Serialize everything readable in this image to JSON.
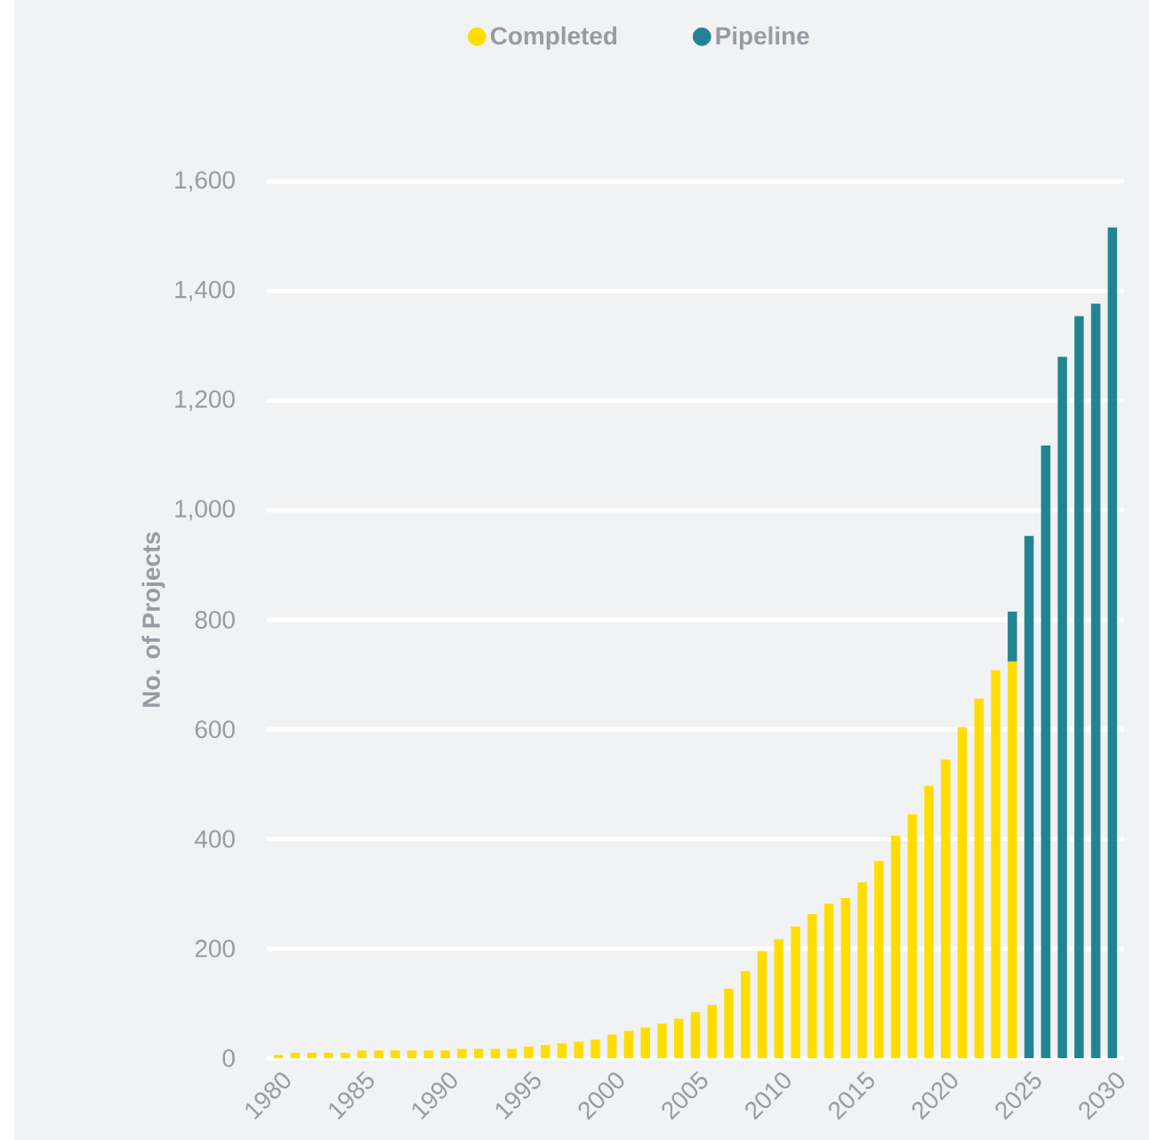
{
  "chart_data": {
    "type": "bar",
    "stacked": true,
    "ylabel": "No. of Projects",
    "categories": [
      "1980",
      null,
      null,
      null,
      null,
      "1985",
      null,
      null,
      null,
      null,
      "1990",
      null,
      null,
      null,
      null,
      "1995",
      null,
      null,
      null,
      null,
      "2000",
      null,
      null,
      null,
      null,
      "2005",
      null,
      null,
      null,
      null,
      "2010",
      null,
      null,
      null,
      null,
      "2015",
      null,
      null,
      null,
      null,
      "2020",
      null,
      null,
      null,
      null,
      "2025",
      null,
      null,
      null,
      null,
      "2030"
    ],
    "series": [
      {
        "name": "Completed",
        "color": "#ffdd00",
        "values": [
          6,
          10,
          10,
          10,
          10,
          14,
          14,
          14,
          14,
          14,
          14,
          17,
          17,
          17,
          17,
          21,
          24,
          27,
          30,
          34,
          43,
          50,
          56,
          63,
          72,
          84,
          97,
          127,
          159,
          195,
          217,
          240,
          263,
          282,
          292,
          321,
          360,
          406,
          445,
          497,
          545,
          604,
          656,
          708,
          724,
          null,
          null,
          null,
          null,
          null,
          null
        ]
      },
      {
        "name": "Pipeline",
        "color": "#238491",
        "values": [
          null,
          null,
          null,
          null,
          null,
          null,
          null,
          null,
          null,
          null,
          null,
          null,
          null,
          null,
          null,
          null,
          null,
          null,
          null,
          null,
          null,
          null,
          null,
          null,
          null,
          null,
          null,
          null,
          null,
          null,
          null,
          null,
          null,
          null,
          null,
          null,
          null,
          null,
          null,
          null,
          null,
          null,
          null,
          null,
          91,
          953,
          1118,
          1280,
          1354,
          1377,
          1516
        ]
      }
    ],
    "ylim": [
      0,
      1600
    ],
    "yticks": [
      0,
      200,
      400,
      600,
      800,
      {
        "value": 1000,
        "label": "1,000"
      },
      {
        "value": 1200,
        "label": "1,200"
      },
      {
        "value": 1400,
        "label": "1,400"
      },
      {
        "value": 1600,
        "label": "1,600"
      }
    ],
    "grid": "y",
    "legend": "top"
  }
}
